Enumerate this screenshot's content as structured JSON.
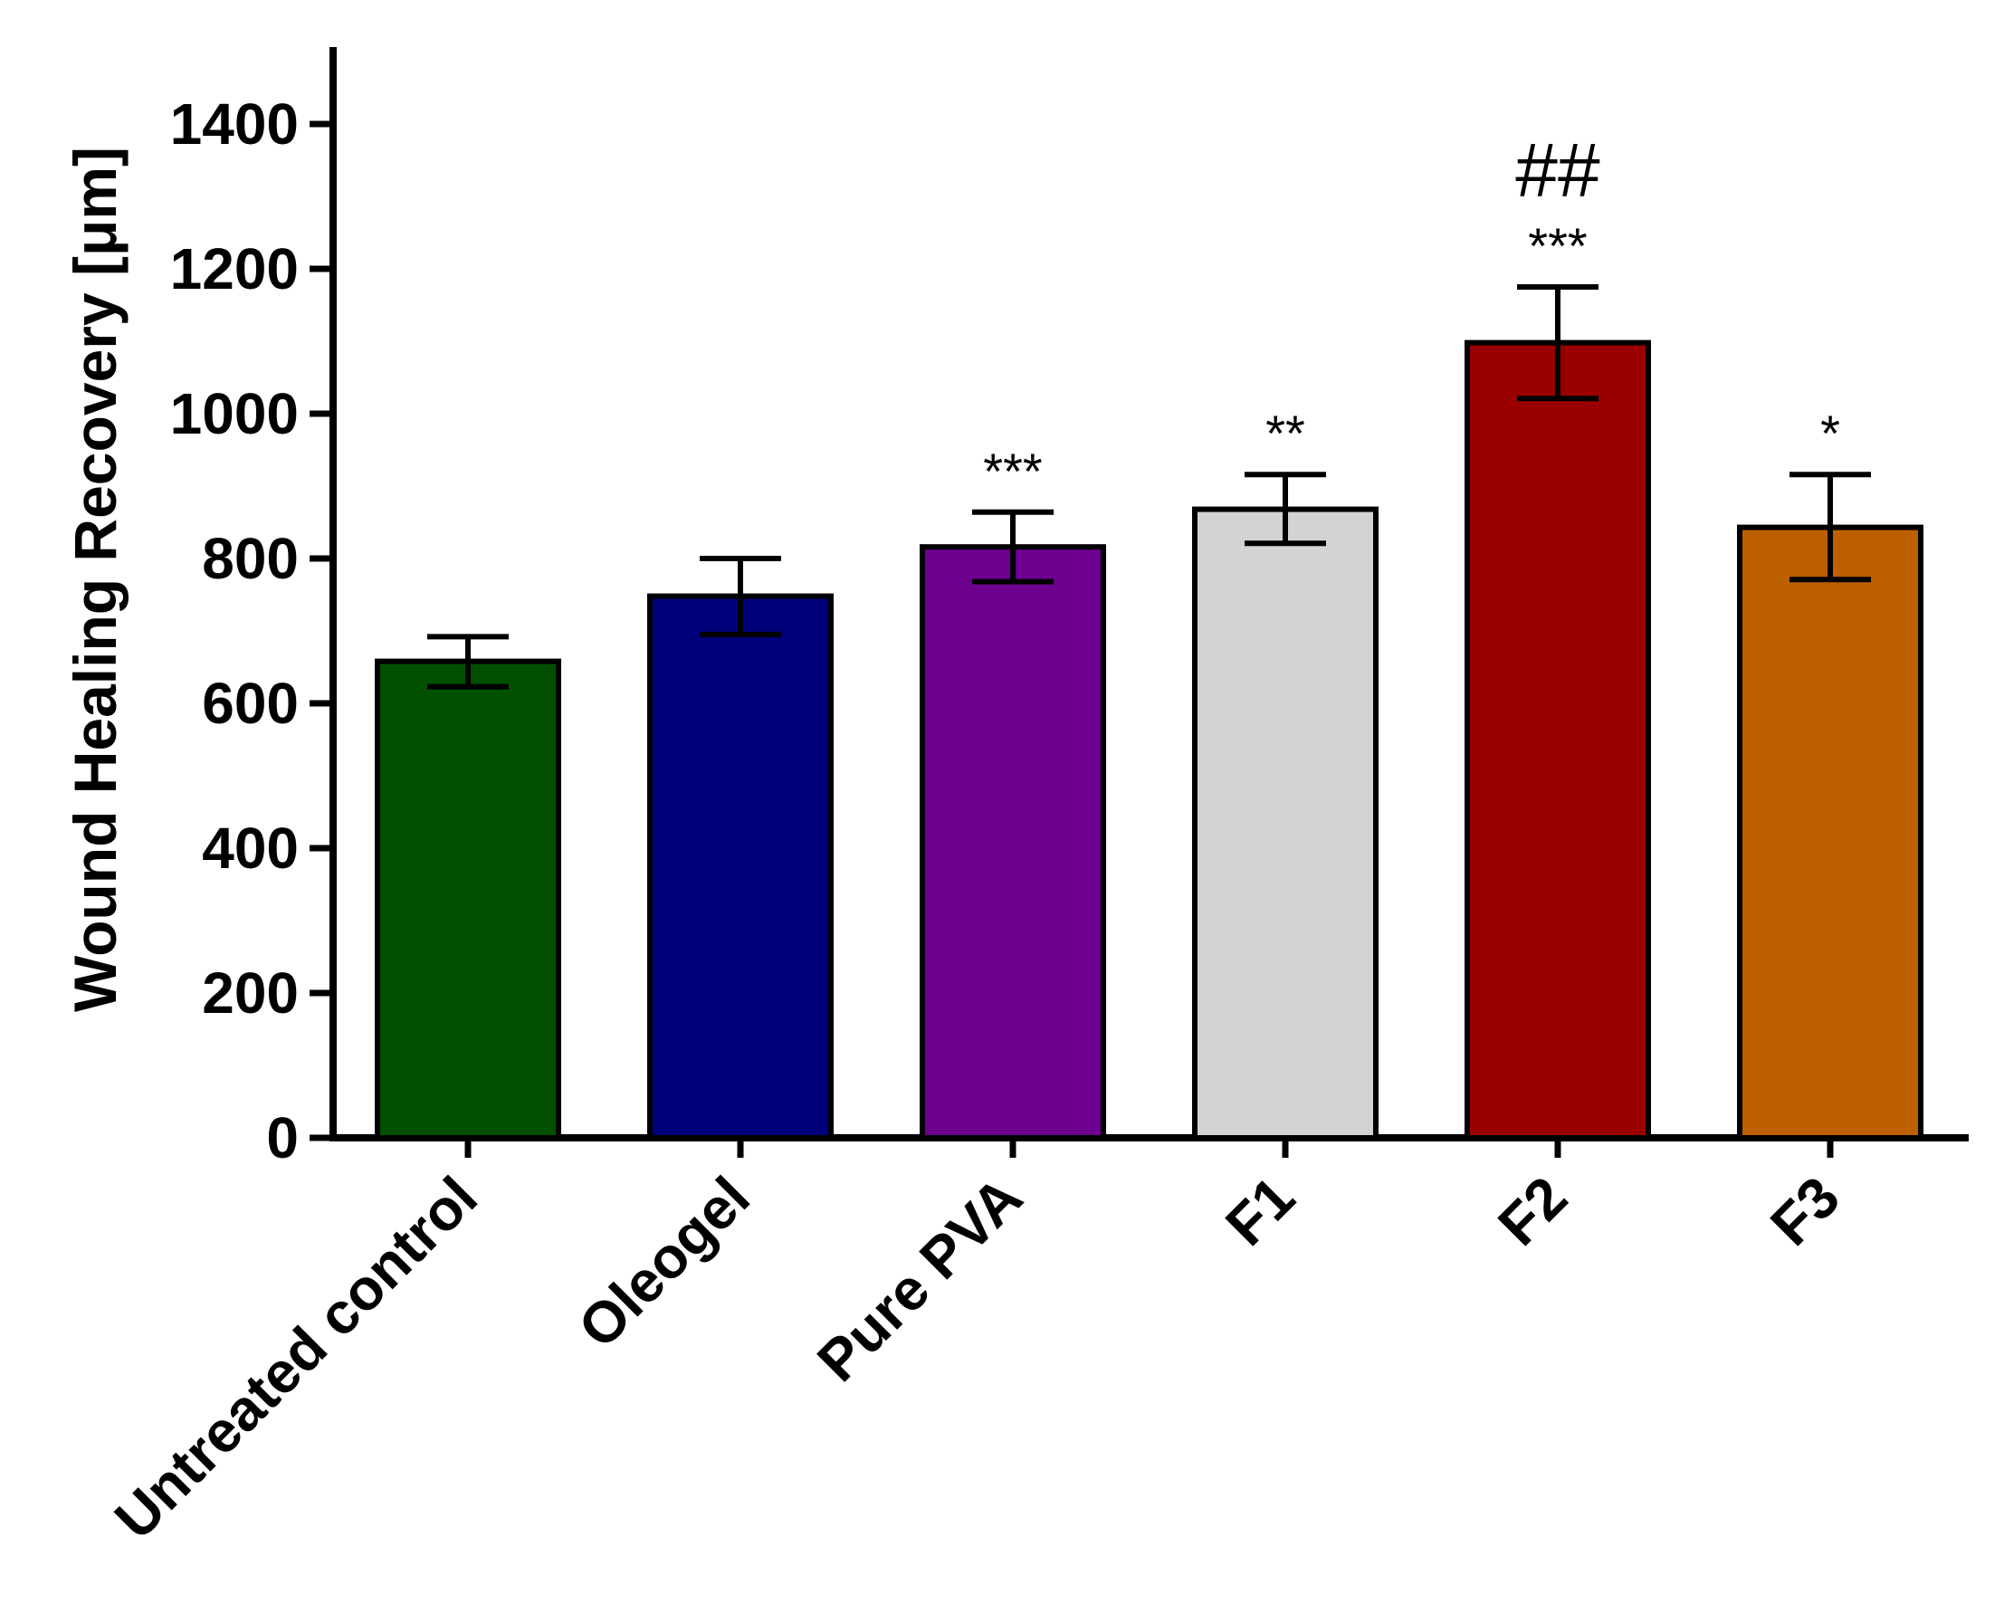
{
  "chart_data": {
    "type": "bar",
    "ylabel": "Wound Healing Recovery [μm]",
    "xlabel": "",
    "ylim": [
      0,
      1500
    ],
    "yticks": [
      0,
      200,
      400,
      600,
      800,
      1000,
      1200,
      1400
    ],
    "ytick_labels": [
      "0",
      "200",
      "400",
      "600",
      "800",
      "1000",
      "1200",
      "1400"
    ],
    "categories": [
      "Untreated control",
      "Oleogel",
      "Pure PVA",
      "F1",
      "F2",
      "F3"
    ],
    "values": [
      658,
      748,
      816,
      868,
      1098,
      843
    ],
    "error_low": [
      623,
      695,
      768,
      821,
      1021,
      771
    ],
    "error_high": [
      692,
      800,
      864,
      916,
      1175,
      916
    ],
    "colors": [
      "#005000",
      "#00007a",
      "#6e0090",
      "#d3d3d3",
      "#9b0000",
      "#be5f00"
    ],
    "significance": [
      "",
      "",
      "***",
      "**",
      "***",
      "*"
    ],
    "significance_hash": [
      "",
      "",
      "",
      "",
      "##",
      ""
    ],
    "grid": false,
    "legend": "none"
  }
}
